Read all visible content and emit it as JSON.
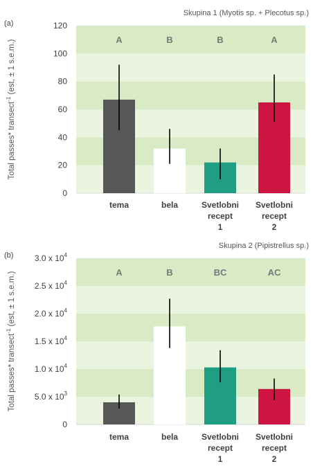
{
  "colors": {
    "band_dark": "#d9ebc4",
    "band_light": "#eaf4de",
    "error_bar": "#000000"
  },
  "chart_data": [
    {
      "type": "bar",
      "panel_label": "(a)",
      "title": "Skupina 1 (Myotis sp. + Plecotus sp.)",
      "ylabel": "Total passes* transect",
      "ylabel_sup": "-1",
      "ylabel_tail": " (est, ± 1 s.e.m.)",
      "ylim": [
        0,
        120
      ],
      "grid": true,
      "yticks": [
        {
          "value": 0,
          "label": "0"
        },
        {
          "value": 20,
          "label": "20"
        },
        {
          "value": 40,
          "label": "40"
        },
        {
          "value": 60,
          "label": "60"
        },
        {
          "value": 80,
          "label": "80"
        },
        {
          "value": 100,
          "label": "100"
        },
        {
          "value": 120,
          "label": "120"
        }
      ],
      "categories": [
        [
          "tema"
        ],
        [
          "bela"
        ],
        [
          "Svetlobni",
          "recept",
          "1"
        ],
        [
          "Svetlobni",
          "recept",
          "2"
        ]
      ],
      "values": [
        67,
        32,
        22,
        65
      ],
      "error_low": [
        45,
        21,
        10,
        51
      ],
      "error_high": [
        92,
        46,
        32,
        85
      ],
      "bar_colors": [
        "#575757",
        "#ffffff",
        "#1f9e84",
        "#cc1540"
      ],
      "group_letters": [
        "A",
        "B",
        "B",
        "A"
      ]
    },
    {
      "type": "bar",
      "panel_label": "(b)",
      "title": "Skupina 2 (Pipistrellus sp.)",
      "ylabel": "Total passes* transect",
      "ylabel_sup": "-1",
      "ylabel_tail": " (est, ± 1 s.e.m.)",
      "ylim": [
        0,
        30000
      ],
      "grid": true,
      "yticks": [
        {
          "value": 0,
          "label": "0",
          "sup": ""
        },
        {
          "value": 5000,
          "label": "5.0 x 10",
          "sup": "3"
        },
        {
          "value": 10000,
          "label": "1.0 x 10",
          "sup": "4"
        },
        {
          "value": 15000,
          "label": "1.5 x 10",
          "sup": "4"
        },
        {
          "value": 20000,
          "label": "2.0 x 10",
          "sup": "4"
        },
        {
          "value": 25000,
          "label": "2.5 x 10",
          "sup": "4"
        },
        {
          "value": 30000,
          "label": "3.0 x 10",
          "sup": "4"
        }
      ],
      "categories": [
        [
          "tema"
        ],
        [
          "bela"
        ],
        [
          "Svetlobni",
          "recept",
          "1"
        ],
        [
          "Svetlobni",
          "recept",
          "2"
        ]
      ],
      "values": [
        4000,
        17700,
        10300,
        6400
      ],
      "error_low": [
        2900,
        13800,
        7600,
        4400
      ],
      "error_high": [
        5400,
        22700,
        13400,
        8300
      ],
      "bar_colors": [
        "#575757",
        "#ffffff",
        "#1f9e84",
        "#cc1540"
      ],
      "group_letters": [
        "A",
        "B",
        "BC",
        "AC"
      ]
    }
  ]
}
